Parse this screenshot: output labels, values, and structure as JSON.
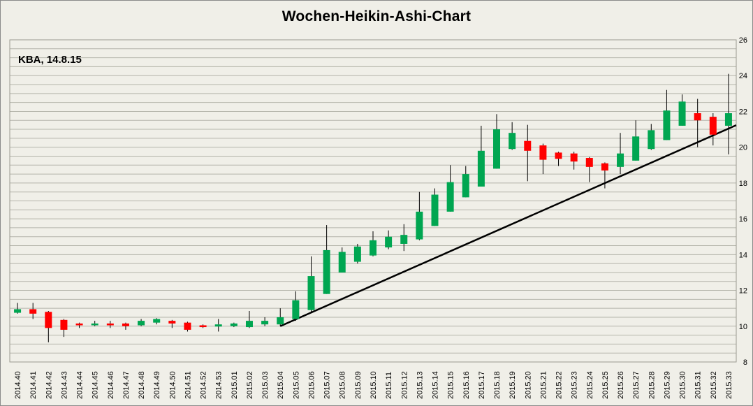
{
  "chart_data": {
    "type": "candlestick",
    "title": "Wochen-Heikin-Ashi-Chart",
    "annotation": "KBA, 14.8.15",
    "ylim": [
      8,
      26
    ],
    "yticks": [
      8,
      10,
      12,
      14,
      16,
      18,
      20,
      22,
      24,
      26
    ],
    "grid": true,
    "colors": {
      "up": "#00a651",
      "down": "#ff0000",
      "wick": "#000000",
      "grid": "#b4b4aa",
      "background": "#f0efe8",
      "trendline": "#000000"
    },
    "categories": [
      "2014.40",
      "2014.41",
      "2014.42",
      "2014.43",
      "2014.44",
      "2014.45",
      "2014.46",
      "2014.47",
      "2014.48",
      "2014.49",
      "2014.50",
      "2014.51",
      "2014.52",
      "2014.53",
      "2015.01",
      "2015.02",
      "2015.03",
      "2015.04",
      "2015.05",
      "2015.06",
      "2015.07",
      "2015.08",
      "2015.09",
      "2015.10",
      "2015.11",
      "2015.12",
      "2015.13",
      "2015.14",
      "2015.15",
      "2015.16",
      "2015.17",
      "2015.18",
      "2015.19",
      "2015.20",
      "2015.21",
      "2015.22",
      "2015.23",
      "2015.24",
      "2015.25",
      "2015.26",
      "2015.27",
      "2015.28",
      "2015.29",
      "2015.30",
      "2015.31",
      "2015.32",
      "2015.33"
    ],
    "candles": [
      {
        "open": 10.75,
        "close": 10.95,
        "high": 11.3,
        "low": 10.7
      },
      {
        "open": 10.95,
        "close": 10.7,
        "high": 11.3,
        "low": 10.4
      },
      {
        "open": 10.8,
        "close": 9.9,
        "high": 10.85,
        "low": 9.1
      },
      {
        "open": 10.35,
        "close": 9.8,
        "high": 10.4,
        "low": 9.4
      },
      {
        "open": 10.15,
        "close": 10.05,
        "high": 10.2,
        "low": 9.9
      },
      {
        "open": 10.05,
        "close": 10.15,
        "high": 10.3,
        "low": 10.0
      },
      {
        "open": 10.15,
        "close": 10.05,
        "high": 10.3,
        "low": 9.9
      },
      {
        "open": 10.15,
        "close": 10.0,
        "high": 10.2,
        "low": 9.8
      },
      {
        "open": 10.05,
        "close": 10.3,
        "high": 10.4,
        "low": 10.0
      },
      {
        "open": 10.2,
        "close": 10.4,
        "high": 10.45,
        "low": 10.1
      },
      {
        "open": 10.3,
        "close": 10.15,
        "high": 10.35,
        "low": 9.9
      },
      {
        "open": 10.2,
        "close": 9.8,
        "high": 10.25,
        "low": 9.7
      },
      {
        "open": 10.05,
        "close": 9.95,
        "high": 10.1,
        "low": 9.9
      },
      {
        "open": 9.98,
        "close": 10.1,
        "high": 10.4,
        "low": 9.7
      },
      {
        "open": 10.0,
        "close": 10.15,
        "high": 10.2,
        "low": 9.95
      },
      {
        "open": 9.95,
        "close": 10.3,
        "high": 10.85,
        "low": 9.9
      },
      {
        "open": 10.1,
        "close": 10.3,
        "high": 10.5,
        "low": 10.0
      },
      {
        "open": 10.1,
        "close": 10.5,
        "high": 11.0,
        "low": 10.0
      },
      {
        "open": 10.4,
        "close": 11.45,
        "high": 11.95,
        "low": 10.3
      },
      {
        "open": 10.9,
        "close": 12.8,
        "high": 13.9,
        "low": 10.8
      },
      {
        "open": 11.8,
        "close": 14.25,
        "high": 15.65,
        "low": 11.8
      },
      {
        "open": 13.0,
        "close": 14.15,
        "high": 14.4,
        "low": 13.0
      },
      {
        "open": 13.6,
        "close": 14.45,
        "high": 14.6,
        "low": 13.5
      },
      {
        "open": 13.95,
        "close": 14.8,
        "high": 15.3,
        "low": 13.9
      },
      {
        "open": 14.4,
        "close": 15.0,
        "high": 15.35,
        "low": 14.3
      },
      {
        "open": 14.6,
        "close": 15.1,
        "high": 15.7,
        "low": 14.2
      },
      {
        "open": 14.85,
        "close": 16.4,
        "high": 17.5,
        "low": 14.8
      },
      {
        "open": 15.6,
        "close": 17.35,
        "high": 17.7,
        "low": 15.6
      },
      {
        "open": 16.4,
        "close": 18.05,
        "high": 19.0,
        "low": 16.4
      },
      {
        "open": 17.2,
        "close": 18.5,
        "high": 18.95,
        "low": 17.2
      },
      {
        "open": 17.8,
        "close": 19.8,
        "high": 21.2,
        "low": 17.8
      },
      {
        "open": 18.8,
        "close": 21.0,
        "high": 21.85,
        "low": 18.8
      },
      {
        "open": 19.9,
        "close": 20.8,
        "high": 21.4,
        "low": 19.85
      },
      {
        "open": 20.35,
        "close": 19.8,
        "high": 21.25,
        "low": 18.1
      },
      {
        "open": 20.1,
        "close": 19.3,
        "high": 20.2,
        "low": 18.5
      },
      {
        "open": 19.7,
        "close": 19.35,
        "high": 19.75,
        "low": 18.95
      },
      {
        "open": 19.65,
        "close": 19.2,
        "high": 19.75,
        "low": 18.75
      },
      {
        "open": 19.4,
        "close": 18.9,
        "high": 19.45,
        "low": 18.05
      },
      {
        "open": 19.1,
        "close": 18.7,
        "high": 19.15,
        "low": 17.7
      },
      {
        "open": 18.9,
        "close": 19.65,
        "high": 20.8,
        "low": 18.5
      },
      {
        "open": 19.25,
        "close": 20.6,
        "high": 21.5,
        "low": 19.25
      },
      {
        "open": 19.9,
        "close": 20.95,
        "high": 21.3,
        "low": 19.85
      },
      {
        "open": 20.4,
        "close": 22.05,
        "high": 23.2,
        "low": 20.4
      },
      {
        "open": 21.2,
        "close": 22.55,
        "high": 22.95,
        "low": 21.2
      },
      {
        "open": 21.9,
        "close": 21.5,
        "high": 22.7,
        "low": 20.0
      },
      {
        "open": 21.7,
        "close": 20.7,
        "high": 21.9,
        "low": 20.1
      },
      {
        "open": 21.2,
        "close": 21.9,
        "high": 24.1,
        "low": 19.6
      }
    ],
    "trendline": {
      "start": {
        "x": "2015.04",
        "y": 10.0
      },
      "slope_per_week": 0.3807
    }
  }
}
